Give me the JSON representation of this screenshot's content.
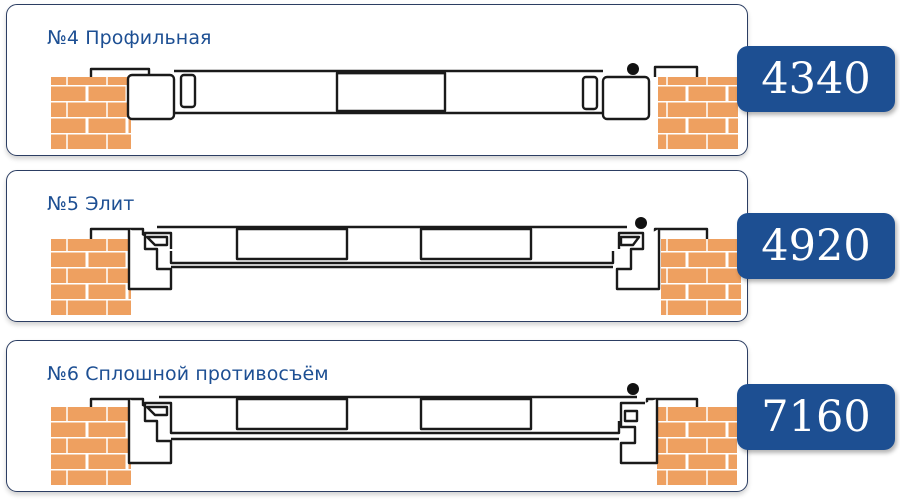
{
  "items": [
    {
      "title": "№4 Профильная",
      "price": "4340"
    },
    {
      "title": "№5 Элит",
      "price": "4920"
    },
    {
      "title": "№6 Сплошной противосъём",
      "price": "7160"
    }
  ],
  "colors": {
    "brick": "#f2a462",
    "mortar": "#ffffff",
    "outline": "#1a1a1a",
    "title": "#1d4f93",
    "price_bg": "#1d4f92",
    "card_border": "#2c3e63"
  }
}
